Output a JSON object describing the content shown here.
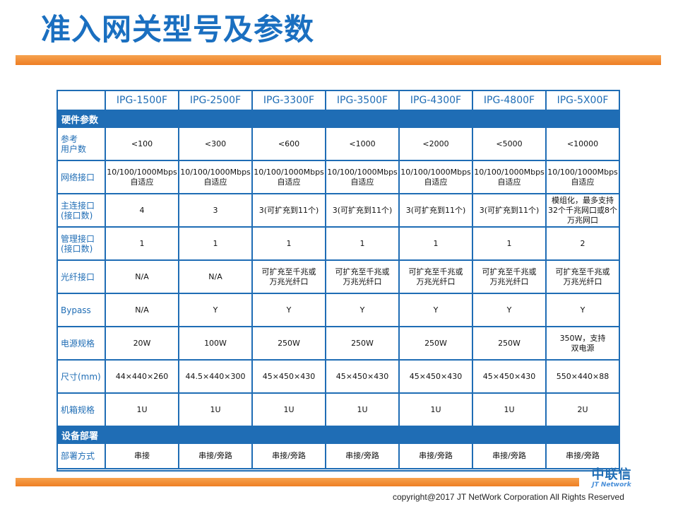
{
  "title": "准入网关型号及参数",
  "models": [
    "IPG-1500F",
    "IPG-2500F",
    "IPG-3300F",
    "IPG-3500F",
    "IPG-4300F",
    "IPG-4800F",
    "IPG-5X00F"
  ],
  "sections": {
    "hardware": "硬件参数",
    "deployment": "设备部署"
  },
  "rows": [
    {
      "label": "参考\n用户数",
      "values": [
        "<100",
        "<300",
        "<600",
        "<1000",
        "<2000",
        "<5000",
        "<10000"
      ]
    },
    {
      "label": "网络接口",
      "values": [
        "10/100/1000Mbps\n自适应",
        "10/100/1000Mbps\n自适应",
        "10/100/1000Mbps\n自适应",
        "10/100/1000Mbps\n自适应",
        "10/100/1000Mbps\n自适应",
        "10/100/1000Mbps\n自适应",
        "10/100/1000Mbps\n自适应"
      ]
    },
    {
      "label": "主连接口\n(接口数)",
      "values": [
        "4",
        "3",
        "3(可扩充到11个)",
        "3(可扩充到11个)",
        "3(可扩充到11个)",
        "3(可扩充到11个)",
        "模组化，最多支持\n32个千兆网口或8个\n万兆网口"
      ]
    },
    {
      "label": "管理接口\n(接口数)",
      "values": [
        "1",
        "1",
        "1",
        "1",
        "1",
        "1",
        "2"
      ]
    },
    {
      "label": "光纤接口",
      "values": [
        "N/A",
        "N/A",
        "可扩充至千兆或\n万兆光纤口",
        "可扩充至千兆或\n万兆光纤口",
        "可扩充至千兆或\n万兆光纤口",
        "可扩充至千兆或\n万兆光纤口",
        "可扩充至千兆或\n万兆光纤口"
      ]
    },
    {
      "label": "Bypass",
      "values": [
        "N/A",
        "Y",
        "Y",
        "Y",
        "Y",
        "Y",
        "Y"
      ]
    },
    {
      "label": "电源规格",
      "values": [
        "20W",
        "100W",
        "250W",
        "250W",
        "250W",
        "250W",
        "350W，支持\n双电源"
      ]
    },
    {
      "label": "尺寸(mm)",
      "values": [
        "44×440×260",
        "44.5×440×300",
        "45×450×430",
        "45×450×430",
        "45×450×430",
        "45×450×430",
        "550×440×88"
      ]
    },
    {
      "label": "机箱规格",
      "values": [
        "1U",
        "1U",
        "1U",
        "1U",
        "1U",
        "1U",
        "2U"
      ]
    }
  ],
  "deploy_rows": [
    {
      "label": "部署方式",
      "values": [
        "串接",
        "串接/旁路",
        "串接/旁路",
        "串接/旁路",
        "串接/旁路",
        "串接/旁路",
        "串接/旁路"
      ]
    }
  ],
  "logo": {
    "cn": "中联信",
    "en": "JT Network"
  },
  "copyright": "copyright@2017  JT NetWork Corporation All Rights Reserved",
  "colors": {
    "accent": "#1f6db5",
    "orange": "#ee7e24",
    "title": "#1a6fc0"
  }
}
